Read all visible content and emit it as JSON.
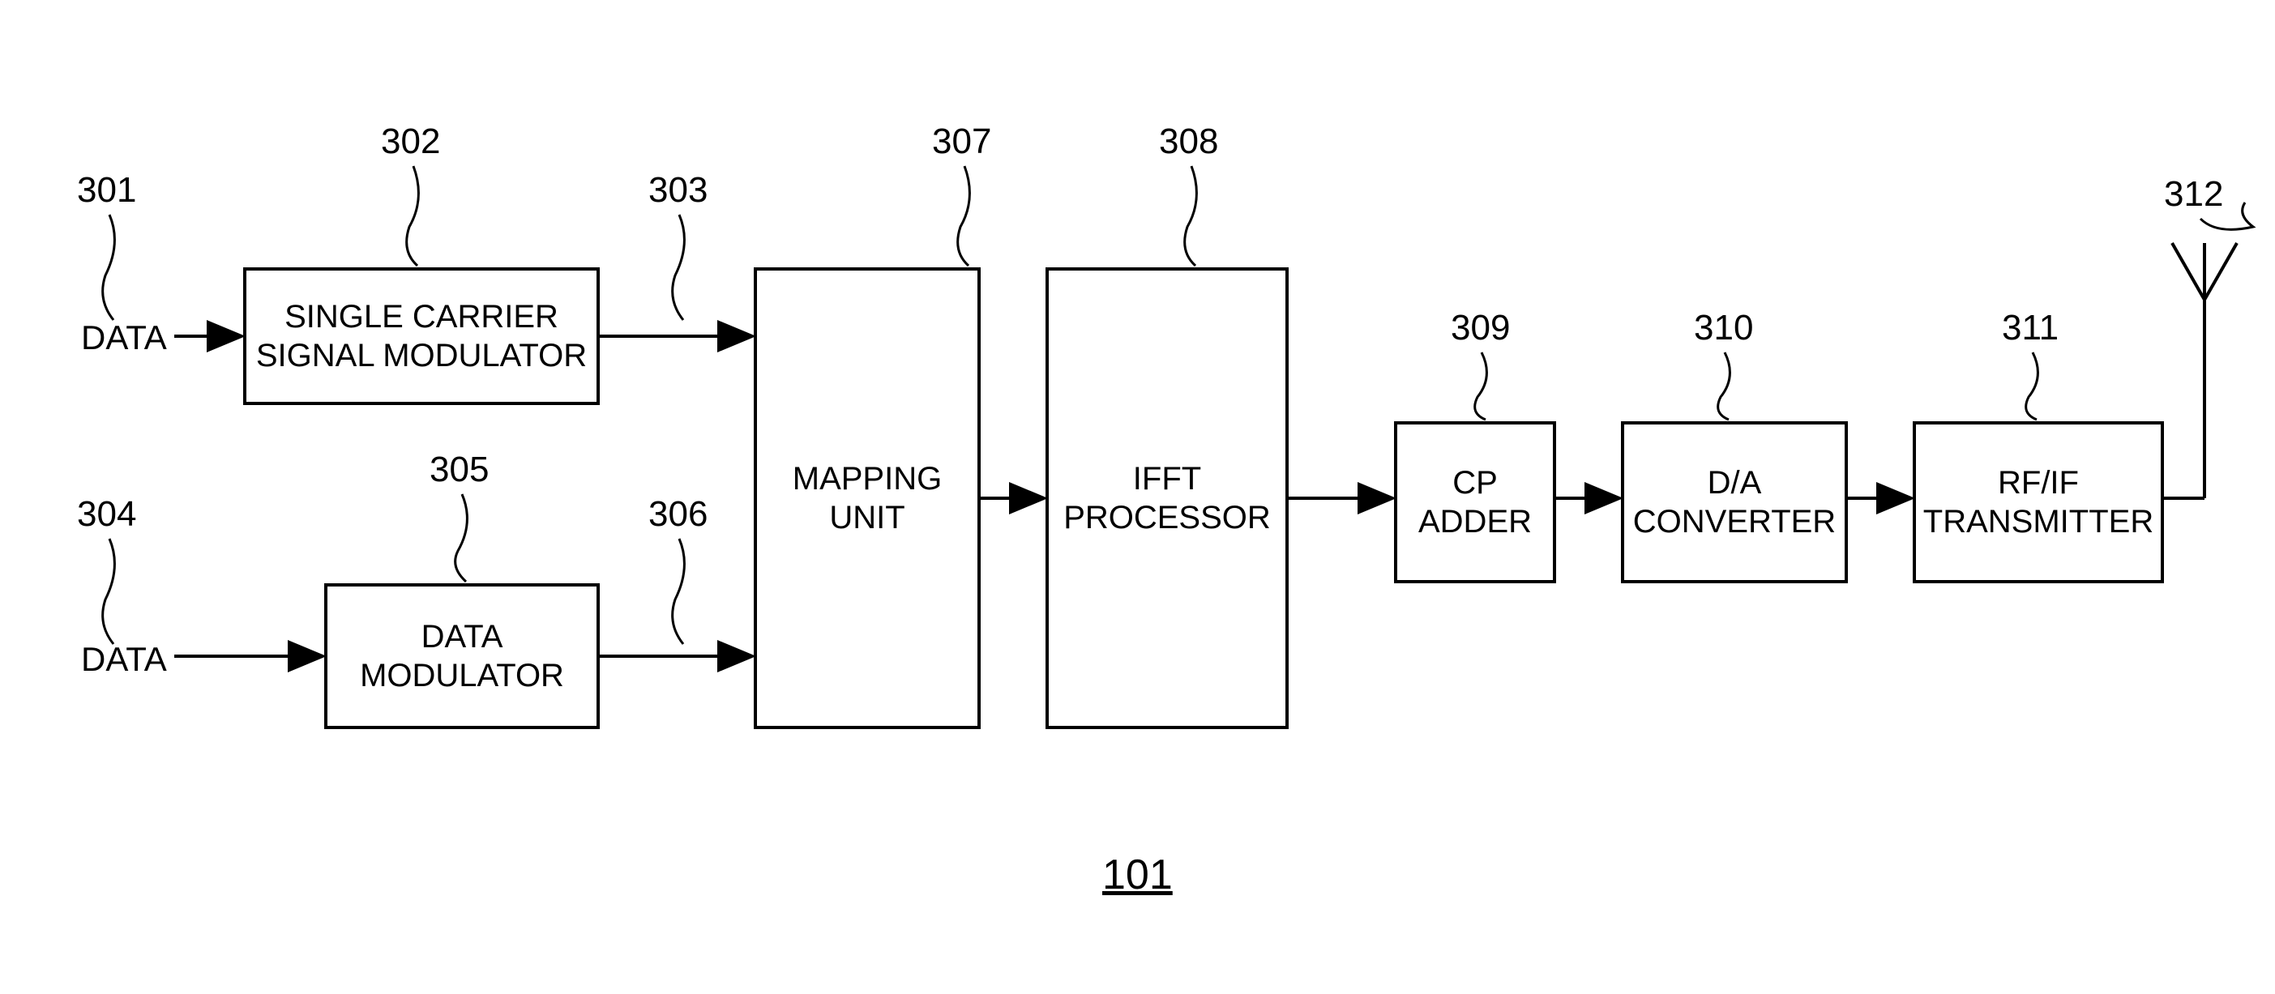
{
  "diagram": {
    "type": "flowchart",
    "figure_label": "101",
    "inputs": {
      "data1": "DATA",
      "data2": "DATA"
    },
    "blocks": {
      "sc_modulator": {
        "label": "SINGLE CARRIER\nSIGNAL MODULATOR",
        "ref": "302"
      },
      "data_modulator": {
        "label": "DATA\nMODULATOR",
        "ref": "305"
      },
      "mapping": {
        "label": "MAPPING\nUNIT",
        "ref": "307"
      },
      "ifft": {
        "label": "IFFT\nPROCESSOR",
        "ref": "308"
      },
      "cp_adder": {
        "label": "CP\nADDER",
        "ref": "309"
      },
      "da_converter": {
        "label": "D/A\nCONVERTER",
        "ref": "310"
      },
      "rfif_tx": {
        "label": "RF/IF\nTRANSMITTER",
        "ref": "311"
      }
    },
    "refs": {
      "data1": "301",
      "signal1": "303",
      "data2": "304",
      "signal2": "306",
      "antenna": "312"
    },
    "style": {
      "stroke_color": "#000000",
      "stroke_width": 4,
      "background_color": "#ffffff",
      "font_size_block": 40,
      "font_size_label": 44,
      "font_family": "Arial"
    }
  }
}
